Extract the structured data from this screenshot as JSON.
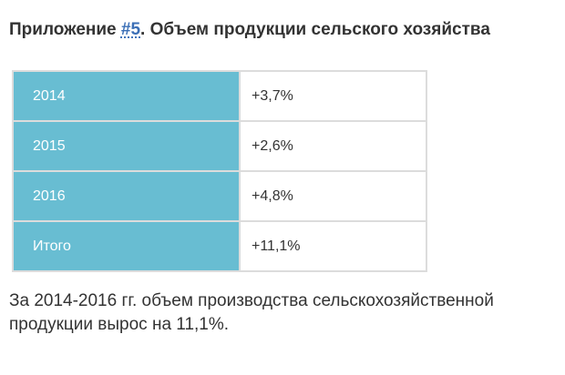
{
  "heading": {
    "prefix": "Приложение ",
    "tag": "#5",
    "title": ". Объем продукции сельского хозяйства"
  },
  "table": {
    "rows": [
      {
        "period": "2014",
        "change": "+3,7%"
      },
      {
        "period": "2015",
        "change": "+2,6%"
      },
      {
        "period": "2016",
        "change": "+4,8%"
      },
      {
        "period": "Итого",
        "change": "+11,1%"
      }
    ]
  },
  "conclusion": "За 2014-2016 гг. объем производства сельскохозяйственной продукции вырос на 11,1%.",
  "colors": {
    "year_cell_bg": "#68bdd2",
    "link": "#3b6fb6",
    "text": "#333333"
  }
}
